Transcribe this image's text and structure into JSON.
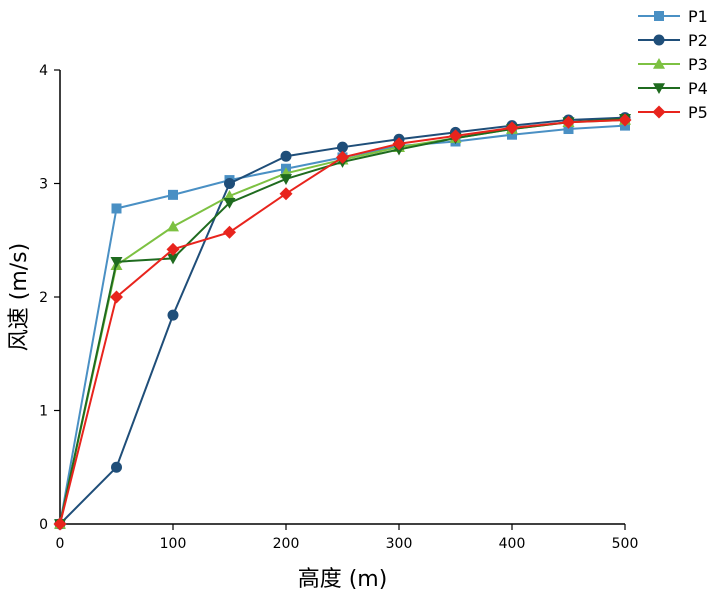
{
  "chart_data": {
    "type": "line",
    "title": "",
    "xlabel": "高度 (m)",
    "ylabel": "风速 (m/s)",
    "xlim": [
      0,
      500
    ],
    "ylim": [
      0,
      4
    ],
    "x_ticks": [
      0,
      100,
      200,
      300,
      400,
      500
    ],
    "y_ticks": [
      0,
      1,
      2,
      3,
      4
    ],
    "legend_position": "top-right",
    "x": [
      0,
      50,
      100,
      150,
      200,
      250,
      300,
      350,
      400,
      450,
      500
    ],
    "series": [
      {
        "name": "P1",
        "color": "#4a90c4",
        "marker": "square",
        "values": [
          0,
          2.78,
          2.9,
          3.03,
          3.13,
          3.23,
          3.33,
          3.37,
          3.43,
          3.48,
          3.51
        ]
      },
      {
        "name": "P2",
        "color": "#1f4e79",
        "marker": "circle",
        "values": [
          0,
          0.5,
          1.84,
          3.0,
          3.24,
          3.32,
          3.39,
          3.45,
          3.51,
          3.56,
          3.58
        ]
      },
      {
        "name": "P3",
        "color": "#7dc142",
        "marker": "triangle-up",
        "values": [
          0,
          2.28,
          2.62,
          2.89,
          3.09,
          3.21,
          3.32,
          3.4,
          3.48,
          3.54,
          3.56
        ]
      },
      {
        "name": "P4",
        "color": "#1f6b1f",
        "marker": "triangle-down",
        "values": [
          0,
          2.31,
          2.34,
          2.83,
          3.04,
          3.19,
          3.3,
          3.4,
          3.48,
          3.54,
          3.57
        ]
      },
      {
        "name": "P5",
        "color": "#e8241d",
        "marker": "diamond",
        "values": [
          0,
          2.0,
          2.42,
          2.57,
          2.91,
          3.23,
          3.35,
          3.42,
          3.49,
          3.54,
          3.56
        ]
      }
    ]
  }
}
